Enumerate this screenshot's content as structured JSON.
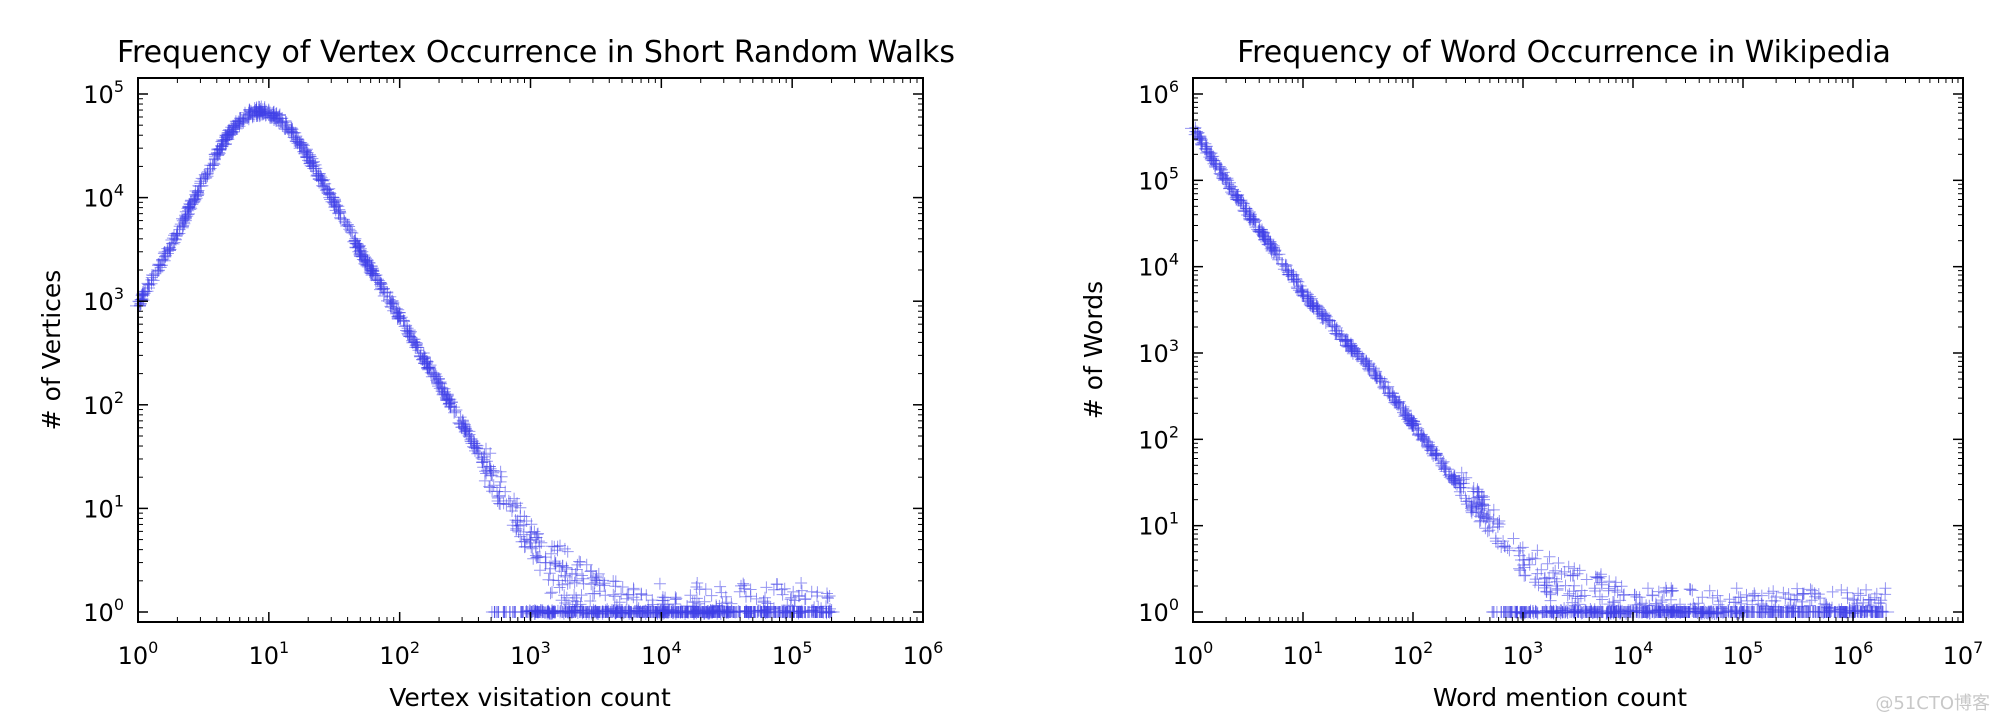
{
  "chart_data": [
    {
      "type": "scatter",
      "title": "Frequency of Vertex Occurrence in Short Random Walks",
      "xlabel": "Vertex visitation count",
      "ylabel": "# of Vertices",
      "xscale": "log",
      "yscale": "log",
      "xlim": [
        1,
        1000000
      ],
      "ylim": [
        1,
        100000
      ],
      "x_ticks": [
        "10^0",
        "10^1",
        "10^2",
        "10^3",
        "10^4",
        "10^5",
        "10^6"
      ],
      "y_ticks": [
        "10^0",
        "10^1",
        "10^2",
        "10^3",
        "10^4",
        "10^5"
      ],
      "marker": "+",
      "color": "#3f3fe8",
      "series": [
        {
          "points": [
            [
              1,
              900
            ],
            [
              2,
              4500
            ],
            [
              3,
              13000
            ],
            [
              4,
              26000
            ],
            [
              5,
              42000
            ],
            [
              6,
              55000
            ],
            [
              7,
              63000
            ],
            [
              8,
              67000
            ],
            [
              9,
              68000
            ],
            [
              10,
              66000
            ],
            [
              12,
              58000
            ],
            [
              15,
              42000
            ],
            [
              20,
              25000
            ],
            [
              30,
              10000
            ],
            [
              50,
              3000
            ],
            [
              100,
              700
            ],
            [
              200,
              160
            ],
            [
              300,
              65
            ],
            [
              500,
              22
            ],
            [
              700,
              11
            ],
            [
              1000,
              5
            ],
            [
              1300,
              3
            ],
            [
              2000,
              2
            ],
            [
              3000,
              1.5
            ],
            [
              5000,
              1
            ],
            [
              10000,
              1
            ],
            [
              20000,
              1
            ],
            [
              100000,
              1
            ],
            [
              200000,
              1
            ]
          ]
        }
      ]
    },
    {
      "type": "scatter",
      "title": "Frequency of Word Occurrence in Wikipedia",
      "xlabel": "Word mention count",
      "ylabel": "# of Words",
      "xscale": "log",
      "yscale": "log",
      "xlim": [
        1,
        10000000
      ],
      "ylim": [
        1,
        1000000
      ],
      "x_ticks": [
        "10^0",
        "10^1",
        "10^2",
        "10^3",
        "10^4",
        "10^5",
        "10^6",
        "10^7"
      ],
      "y_ticks": [
        "10^0",
        "10^1",
        "10^2",
        "10^3",
        "10^4",
        "10^5",
        "10^6"
      ],
      "marker": "+",
      "color": "#3f3fe8",
      "series": [
        {
          "points": [
            [
              1,
              400000
            ],
            [
              2,
              100000
            ],
            [
              3,
              45000
            ],
            [
              4,
              27000
            ],
            [
              5,
              18000
            ],
            [
              10,
              5000
            ],
            [
              20,
              1800
            ],
            [
              50,
              500
            ],
            [
              100,
              150
            ],
            [
              200,
              45
            ],
            [
              500,
              12
            ],
            [
              1000,
              4
            ],
            [
              2000,
              2
            ],
            [
              5000,
              1.5
            ],
            [
              10000,
              1
            ],
            [
              20000,
              1
            ],
            [
              1000000,
              1
            ],
            [
              2000000,
              1
            ]
          ]
        }
      ]
    }
  ],
  "watermark": "@51CTO博客"
}
